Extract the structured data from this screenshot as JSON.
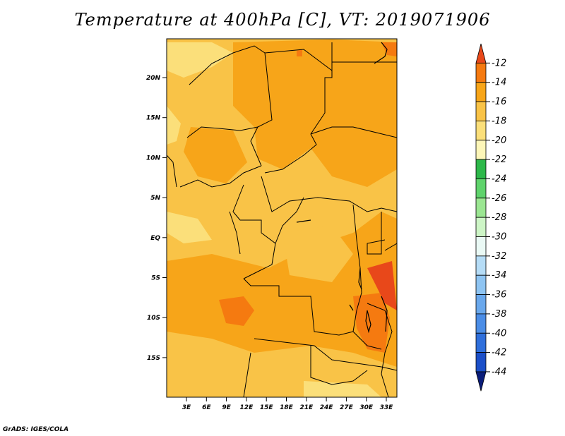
{
  "title": "Temperature at 400hPa [C], VT: 2019071906",
  "credit": "GrADS: IGES/COLA",
  "lat_labels": [
    "20N",
    "15N",
    "10N",
    "5N",
    "EQ",
    "5S",
    "10S",
    "15S"
  ],
  "lon_labels": [
    "3E",
    "6E",
    "9E",
    "12E",
    "15E",
    "18E",
    "21E",
    "24E",
    "27E",
    "30E",
    "33E"
  ],
  "colorbar": {
    "labels": [
      "-12",
      "-14",
      "-16",
      "-18",
      "-20",
      "-22",
      "-24",
      "-26",
      "-28",
      "-30",
      "-32",
      "-34",
      "-36",
      "-38",
      "-40",
      "-42",
      "-44"
    ],
    "colors": [
      "#e8481a",
      "#f57a10",
      "#f7a519",
      "#f9c347",
      "#fbdf7a",
      "#fdf6b8",
      "#2db84a",
      "#5fd36c",
      "#9be692",
      "#cdf5c6",
      "#eaf9f5",
      "#b5dcf6",
      "#8ec4f2",
      "#6aa8ec",
      "#4b8de6",
      "#2f6fdb",
      "#1b4fc8",
      "#0a1d7a"
    ]
  },
  "map_fill_colors": {
    "background": "#f9c347",
    "warm": "#f7a519",
    "warmer": "#f57a10",
    "cool": "#fbdf7a",
    "hot": "#e8481a"
  }
}
